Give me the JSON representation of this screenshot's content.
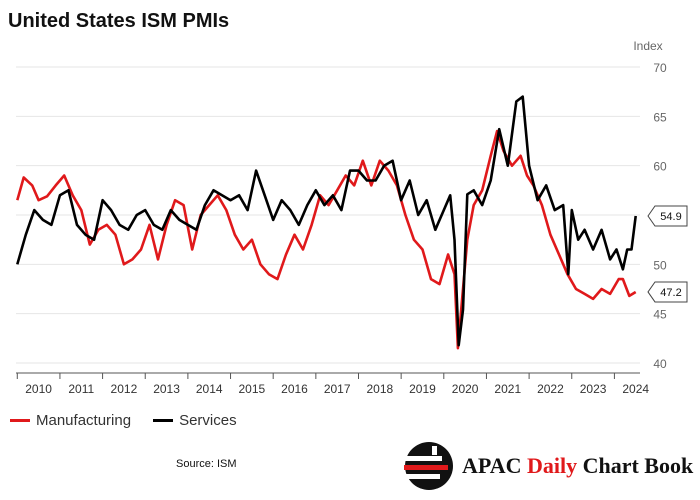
{
  "title": "United States ISM PMIs",
  "source": "Source: ISM",
  "brand": {
    "part1": "APAC ",
    "part2": "Daily",
    "part3": " Chart Book",
    "logo_icon": "apac-daily-chart-book-logo"
  },
  "colors": {
    "manufacturing": "#e0191b",
    "services": "#000000",
    "accent": "#e0191b",
    "grid": "#e6e6e6"
  },
  "chart_data": {
    "type": "line",
    "title": "United States ISM PMIs",
    "ylabel": "Index",
    "xlabel": "",
    "ylim": [
      40,
      70
    ],
    "xlim": [
      2009.97,
      2024.6
    ],
    "yticks": [
      40,
      45,
      50,
      55,
      60,
      65,
      70
    ],
    "xtick_labels": [
      "2010",
      "2011",
      "2012",
      "2013",
      "2014",
      "2015",
      "2016",
      "2017",
      "2018",
      "2019",
      "2020",
      "2021",
      "2022",
      "2023",
      "2024"
    ],
    "grid": true,
    "legend": "bottom-left",
    "series": [
      {
        "name": "Manufacturing",
        "color": "#e0191b",
        "last_value_label": "47.2",
        "x": [
          2010.0,
          2010.15,
          2010.35,
          2010.5,
          2010.7,
          2010.9,
          2011.1,
          2011.3,
          2011.5,
          2011.7,
          2011.9,
          2012.1,
          2012.3,
          2012.5,
          2012.7,
          2012.9,
          2013.1,
          2013.3,
          2013.5,
          2013.7,
          2013.9,
          2014.1,
          2014.3,
          2014.5,
          2014.7,
          2014.9,
          2015.1,
          2015.3,
          2015.5,
          2015.7,
          2015.9,
          2016.1,
          2016.3,
          2016.5,
          2016.7,
          2016.9,
          2017.1,
          2017.3,
          2017.5,
          2017.7,
          2017.9,
          2018.1,
          2018.3,
          2018.5,
          2018.7,
          2018.9,
          2019.1,
          2019.3,
          2019.5,
          2019.7,
          2019.9,
          2020.1,
          2020.25,
          2020.33,
          2020.42,
          2020.55,
          2020.7,
          2020.9,
          2021.1,
          2021.25,
          2021.4,
          2021.6,
          2021.8,
          2021.95,
          2022.1,
          2022.3,
          2022.5,
          2022.7,
          2022.9,
          2023.1,
          2023.3,
          2023.5,
          2023.7,
          2023.9,
          2024.1,
          2024.2,
          2024.35,
          2024.5
        ],
        "y": [
          56.5,
          58.8,
          58.0,
          56.5,
          56.9,
          58.0,
          59.0,
          57.0,
          55.5,
          52.0,
          53.5,
          54.0,
          53.0,
          50.0,
          50.5,
          51.5,
          54.0,
          50.5,
          54.0,
          56.5,
          56.0,
          51.5,
          55.0,
          56.0,
          57.0,
          55.5,
          53.0,
          51.5,
          52.5,
          50.0,
          49.0,
          48.5,
          51.0,
          53.0,
          51.5,
          54.0,
          57.0,
          56.0,
          57.5,
          59.0,
          58.0,
          60.5,
          58.0,
          60.5,
          59.5,
          58.0,
          55.0,
          52.5,
          51.5,
          48.5,
          48.0,
          51.0,
          49.0,
          41.5,
          46.0,
          52.5,
          56.0,
          57.5,
          61.0,
          63.5,
          61.5,
          60.0,
          61.0,
          59.0,
          58.0,
          56.0,
          53.0,
          51.0,
          49.0,
          47.5,
          47.0,
          46.5,
          47.5,
          47.0,
          48.5,
          48.5,
          46.8,
          47.2
        ]
      },
      {
        "name": "Services",
        "color": "#000000",
        "last_value_label": "54.9",
        "x": [
          2010.0,
          2010.2,
          2010.4,
          2010.6,
          2010.8,
          2011.0,
          2011.2,
          2011.4,
          2011.6,
          2011.8,
          2012.0,
          2012.2,
          2012.4,
          2012.6,
          2012.8,
          2013.0,
          2013.2,
          2013.4,
          2013.6,
          2013.8,
          2014.0,
          2014.2,
          2014.4,
          2014.6,
          2014.8,
          2015.0,
          2015.2,
          2015.4,
          2015.6,
          2015.8,
          2016.0,
          2016.2,
          2016.4,
          2016.6,
          2016.8,
          2017.0,
          2017.2,
          2017.4,
          2017.6,
          2017.8,
          2018.0,
          2018.2,
          2018.4,
          2018.6,
          2018.8,
          2019.0,
          2019.2,
          2019.4,
          2019.6,
          2019.8,
          2020.0,
          2020.15,
          2020.25,
          2020.35,
          2020.45,
          2020.55,
          2020.7,
          2020.9,
          2021.1,
          2021.3,
          2021.5,
          2021.7,
          2021.85,
          2022.0,
          2022.2,
          2022.4,
          2022.6,
          2022.8,
          2022.92,
          2023.0,
          2023.15,
          2023.3,
          2023.5,
          2023.7,
          2023.9,
          2024.05,
          2024.2,
          2024.3,
          2024.4,
          2024.5
        ],
        "y": [
          50.0,
          53.0,
          55.5,
          54.5,
          54.0,
          57.0,
          57.5,
          54.0,
          53.0,
          52.5,
          56.5,
          55.5,
          54.0,
          53.5,
          55.0,
          55.5,
          54.0,
          53.5,
          55.5,
          54.5,
          54.0,
          53.5,
          56.0,
          57.5,
          57.0,
          56.5,
          57.0,
          55.5,
          59.5,
          57.0,
          54.5,
          56.5,
          55.5,
          54.0,
          56.0,
          57.5,
          56.0,
          57.0,
          55.5,
          59.5,
          59.5,
          58.5,
          58.5,
          60.0,
          60.5,
          56.5,
          58.5,
          55.0,
          56.5,
          53.5,
          55.5,
          57.0,
          52.5,
          41.8,
          45.4,
          57.1,
          57.5,
          56.0,
          58.5,
          63.7,
          60.0,
          66.5,
          67.0,
          60.0,
          56.5,
          58.0,
          55.5,
          56.0,
          49.0,
          55.5,
          52.5,
          53.5,
          51.5,
          53.5,
          50.5,
          51.5,
          49.5,
          51.5,
          51.5,
          54.9
        ]
      }
    ]
  }
}
